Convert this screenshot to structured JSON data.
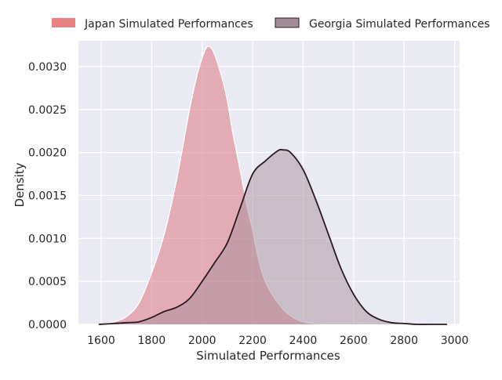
{
  "chart_data": {
    "type": "area",
    "subtype": "kde",
    "title": "",
    "xlabel": "Simulated Performances",
    "ylabel": "Density",
    "xlim": [
      1510,
      3020
    ],
    "ylim": [
      0,
      0.0033
    ],
    "xticks": [
      1600,
      1800,
      2000,
      2200,
      2400,
      2600,
      2800,
      3000
    ],
    "yticks": [
      0.0,
      0.0005,
      0.001,
      0.0015,
      0.002,
      0.0025,
      0.003
    ],
    "ytick_labels": [
      "0.0000",
      "0.0005",
      "0.0010",
      "0.0015",
      "0.0020",
      "0.0025",
      "0.0030"
    ],
    "grid": true,
    "background": "#eaeaf2",
    "legend_position": "top",
    "series": [
      {
        "name": "Japan Simulated Performances",
        "color": "#d96b78",
        "legend_color": "#e88282",
        "line_color": "#ffffff",
        "x": [
          1590,
          1650,
          1700,
          1750,
          1800,
          1850,
          1900,
          1950,
          1980,
          2000,
          2020,
          2040,
          2060,
          2080,
          2100,
          2120,
          2150,
          2180,
          2200,
          2220,
          2250,
          2300,
          2350,
          2400,
          2450,
          2500,
          2550,
          2600
        ],
        "y": [
          0.0,
          3e-05,
          9e-05,
          0.00025,
          0.0006,
          0.00105,
          0.0017,
          0.0025,
          0.0029,
          0.0031,
          0.00323,
          0.0032,
          0.00305,
          0.00285,
          0.0026,
          0.00225,
          0.0018,
          0.00135,
          0.0011,
          0.0008,
          0.0005,
          0.00025,
          0.0001,
          3e-05,
          1e-05,
          0.0,
          0.0,
          0.0
        ]
      },
      {
        "name": "Georgia Simulated Performances",
        "color": "#a88f9e",
        "legend_color": "#a38c98",
        "line_color": "#2a1a22",
        "x": [
          1590,
          1650,
          1700,
          1750,
          1800,
          1850,
          1900,
          1950,
          2000,
          2050,
          2100,
          2150,
          2200,
          2250,
          2300,
          2320,
          2350,
          2400,
          2450,
          2500,
          2550,
          2600,
          2650,
          2700,
          2750,
          2800,
          2850,
          2900,
          2970
        ],
        "y": [
          0.0,
          1e-05,
          2e-05,
          3e-05,
          8e-05,
          0.00015,
          0.0002,
          0.0003,
          0.0005,
          0.00072,
          0.00095,
          0.00135,
          0.00175,
          0.0019,
          0.00202,
          0.00203,
          0.002,
          0.0018,
          0.00145,
          0.00105,
          0.00065,
          0.00035,
          0.00015,
          6e-05,
          2e-05,
          1e-05,
          0.0,
          0.0,
          0.0
        ]
      }
    ]
  }
}
